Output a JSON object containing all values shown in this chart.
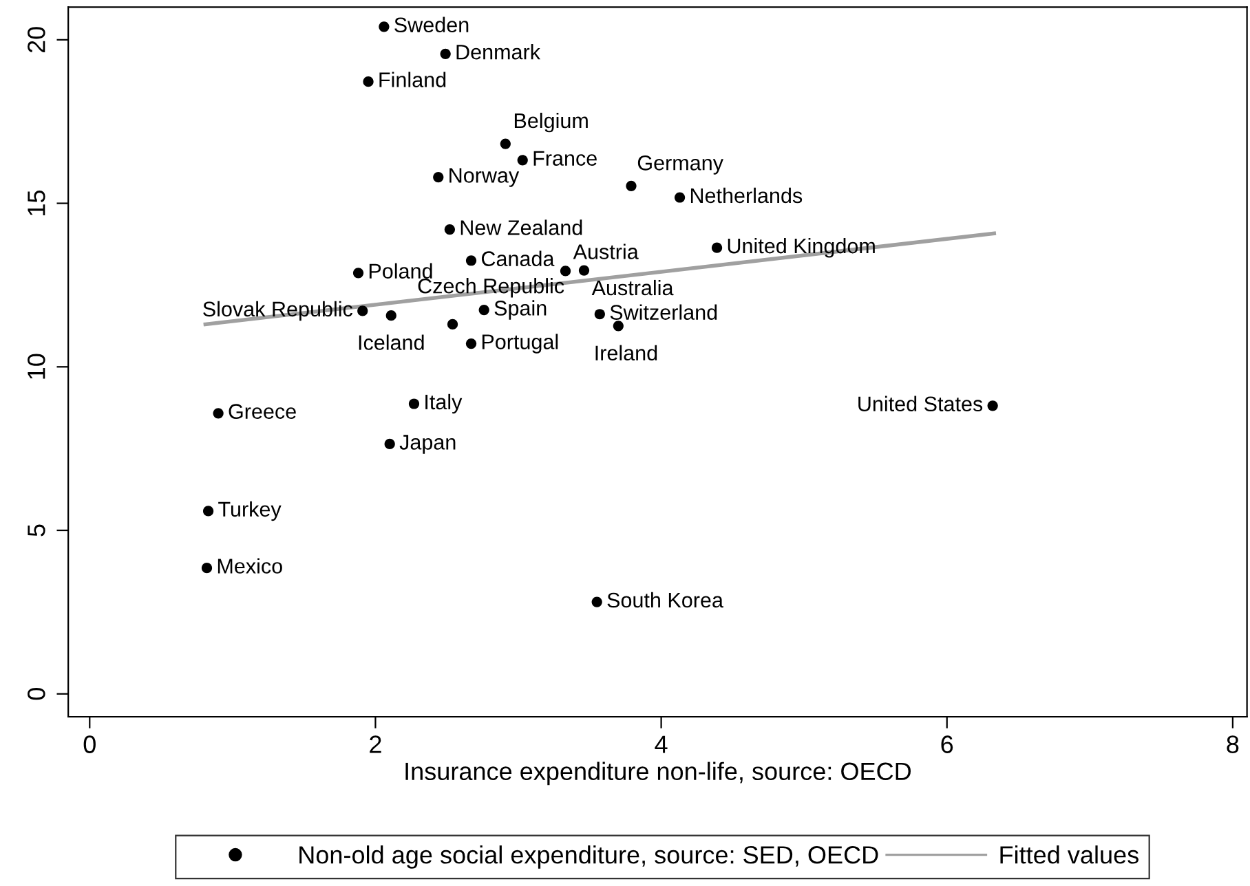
{
  "chart_data": {
    "type": "scatter",
    "xlabel": "Insurance expenditure non-life, source: OECD",
    "xlim": [
      -0.15,
      8.1
    ],
    "xticks": [
      0,
      2,
      4,
      6,
      8
    ],
    "ylim": [
      -0.7,
      21
    ],
    "yticks": [
      0,
      5,
      10,
      15,
      20
    ],
    "grid": false,
    "legend": "bottom",
    "marker": "circle",
    "series": [
      {
        "name": "Non-old age social expenditure, source: SED, OECD",
        "color": "#000000",
        "x": [
          2.06,
          2.49,
          1.95,
          2.91,
          3.03,
          2.44,
          3.79,
          4.13,
          2.52,
          2.67,
          3.33,
          1.88,
          2.54,
          1.91,
          2.11,
          2.76,
          2.67,
          3.46,
          3.57,
          3.7,
          4.39,
          0.9,
          2.27,
          2.1,
          0.83,
          0.82,
          3.55,
          6.32
        ],
        "values": [
          20.4,
          19.57,
          18.72,
          16.82,
          16.32,
          15.8,
          15.53,
          15.18,
          14.2,
          13.25,
          12.93,
          12.87,
          11.3,
          11.71,
          11.57,
          11.74,
          10.71,
          12.95,
          11.61,
          11.25,
          13.64,
          8.58,
          8.87,
          7.64,
          5.59,
          3.85,
          2.81,
          8.81
        ]
      },
      {
        "name": "Fitted values",
        "type": "line",
        "color": "#a0a0a0",
        "marker": "none",
        "line_style": "solid",
        "x": [
          0.81,
          6.33
        ],
        "values": [
          11.3,
          14.08
        ]
      }
    ],
    "annotations": [
      {
        "text": "Sweden",
        "x": 2.06,
        "y": 20.4
      },
      {
        "text": "Denmark",
        "x": 2.49,
        "y": 19.57
      },
      {
        "text": "Finland",
        "x": 1.95,
        "y": 18.72
      },
      {
        "text": "Belgium",
        "x": 2.91,
        "y": 16.82
      },
      {
        "text": "France",
        "x": 3.03,
        "y": 16.32
      },
      {
        "text": "Norway",
        "x": 2.44,
        "y": 15.8
      },
      {
        "text": "Germany",
        "x": 3.79,
        "y": 15.53
      },
      {
        "text": "Netherlands",
        "x": 4.13,
        "y": 15.18
      },
      {
        "text": "New Zealand",
        "x": 2.52,
        "y": 14.2
      },
      {
        "text": "Canada",
        "x": 2.67,
        "y": 13.25
      },
      {
        "text": "Austria",
        "x": 3.33,
        "y": 12.93
      },
      {
        "text": "Poland",
        "x": 1.88,
        "y": 12.87
      },
      {
        "text": "Czech Republic",
        "x": 2.54,
        "y": 11.3
      },
      {
        "text": "Slovak Republic",
        "x": 1.91,
        "y": 11.71
      },
      {
        "text": "Iceland",
        "x": 2.11,
        "y": 11.57
      },
      {
        "text": "Spain",
        "x": 2.76,
        "y": 11.74
      },
      {
        "text": "Portugal",
        "x": 2.67,
        "y": 10.71
      },
      {
        "text": "Australia",
        "x": 3.46,
        "y": 12.95
      },
      {
        "text": "Switzerland",
        "x": 3.57,
        "y": 11.61
      },
      {
        "text": "Ireland",
        "x": 3.7,
        "y": 11.25
      },
      {
        "text": "United Kingdom",
        "x": 4.39,
        "y": 13.64
      },
      {
        "text": "Greece",
        "x": 0.9,
        "y": 8.58
      },
      {
        "text": "Italy",
        "x": 2.27,
        "y": 8.87
      },
      {
        "text": "Japan",
        "x": 2.1,
        "y": 7.64
      },
      {
        "text": "Turkey",
        "x": 0.83,
        "y": 5.59
      },
      {
        "text": "Mexico",
        "x": 0.82,
        "y": 3.85
      },
      {
        "text": "South Korea",
        "x": 3.55,
        "y": 2.81
      },
      {
        "text": "United States",
        "x": 6.32,
        "y": 8.81
      }
    ]
  }
}
